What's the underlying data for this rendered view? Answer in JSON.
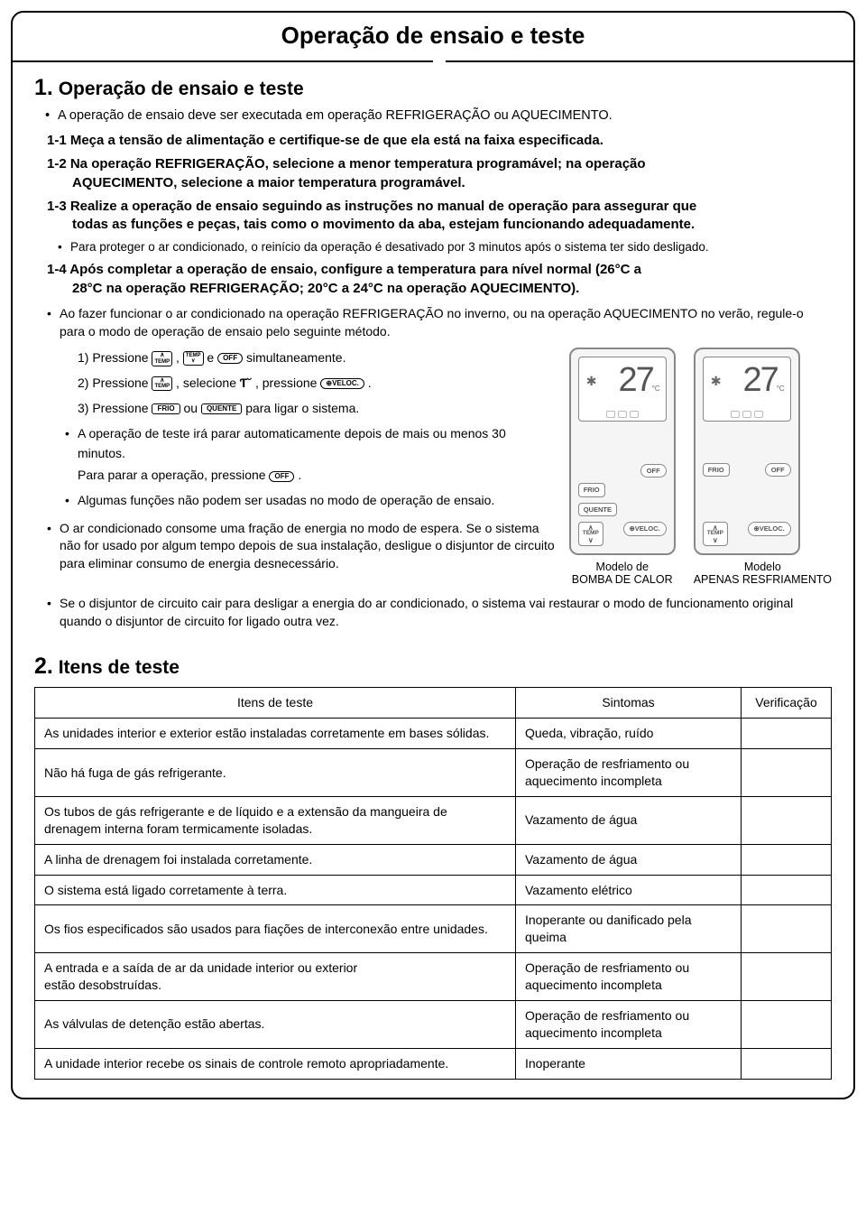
{
  "title": "Operação de ensaio e teste",
  "section1": {
    "heading_num": "1.",
    "heading": "Operação de ensaio e teste",
    "intro_bullet": "A operação de ensaio deve ser executada em operação REFRIGERAÇÃO ou AQUECIMENTO.",
    "s1_1": "1-1 Meça a tensão de alimentação e certifique-se de que ela está na faixa especificada.",
    "s1_2a": "1-2 Na operação REFRIGERAÇÃO, selecione a menor temperatura programável; na operação",
    "s1_2b": "AQUECIMENTO, selecione a maior temperatura programável.",
    "s1_3a": "1-3 Realize a operação de ensaio seguindo as instruções no manual de operação para assegurar que",
    "s1_3b": "todas as funções e peças, tais como o movimento da aba, estejam funcionando adequadamente.",
    "s1_3_bullet": "Para proteger o ar condicionado, o reinício da operação é desativado por 3 minutos após o sistema ter sido desligado.",
    "s1_4a": "1-4 Após completar a operação de ensaio, configure a temperatura para nível normal (26°C a",
    "s1_4b": "28°C na operação REFRIGERAÇÃO; 20°C a 24°C na operação AQUECIMENTO).",
    "note1": "Ao fazer funcionar o ar condicionado na operação REFRIGERAÇÃO no inverno, ou na operação AQUECIMENTO no verão, regule-o para o modo de operação de ensaio pelo seguinte método.",
    "step1_a": "1)  Pressione ",
    "step1_b": " , ",
    "step1_c": " e ",
    "step1_d": " simultaneamente.",
    "step2_a": "2)  Pressione ",
    "step2_b": " , selecione ",
    "step2_c": " , pressione ",
    "step2_d": " .",
    "step3_a": "3)  Pressione ",
    "step3_b": " ou ",
    "step3_c": " para ligar o sistema.",
    "step_b1": "A operação de teste irá parar automaticamente depois de mais ou menos 30 minutos.",
    "step_stop_a": "Para parar a operação, pressione ",
    "step_stop_b": " .",
    "step_b2": "Algumas funções não podem ser usadas no modo de operação de ensaio.",
    "standby": "O ar condicionado consome uma fração de energia no modo de espera. Se o sistema não for usado por algum tempo depois de sua instalação, desligue o disjuntor de circuito para eliminar consumo de energia desnecessário.",
    "breaker": "Se o disjuntor de circuito cair para desligar a energia do ar condicionado, o sistema vai restaurar o modo de funcionamento original quando o disjuntor de circuito for ligado outra vez.",
    "buttons": {
      "temp": "TEMP",
      "temp_up": "TEMP",
      "off": "OFF",
      "veloc": "VELOC.",
      "frio": "FRIO",
      "quente": "QUENTE",
      "mode_symbol": "⟳"
    },
    "remote1": {
      "display": "27",
      "caption1": "Modelo de",
      "caption2": "BOMBA DE CALOR"
    },
    "remote2": {
      "display": "27",
      "caption1": "Modelo",
      "caption2": "APENAS RESFRIAMENTO"
    },
    "rlabels": {
      "off": "OFF",
      "frio": "FRIO",
      "quente": "QUENTE",
      "temp": "TEMP",
      "veloc": "VELOC."
    }
  },
  "section2": {
    "heading_num": "2.",
    "heading": "Itens de teste",
    "columns": [
      "Itens de teste",
      "Sintomas",
      "Verificação"
    ],
    "rows": [
      [
        "As unidades interior e exterior estão instaladas corretamente em bases sólidas.",
        "Queda, vibração, ruído",
        ""
      ],
      [
        "Não há fuga de gás refrigerante.",
        "Operação de resfriamento ou aquecimento incompleta",
        ""
      ],
      [
        "Os tubos de gás refrigerante e de líquido e a extensão da mangueira de drenagem interna foram termicamente isoladas.",
        "Vazamento de água",
        ""
      ],
      [
        "A linha de drenagem foi instalada corretamente.",
        "Vazamento de água",
        ""
      ],
      [
        "O sistema está ligado corretamente à terra.",
        "Vazamento elétrico",
        ""
      ],
      [
        "Os fios especificados são usados para fiações de interconexão entre unidades.",
        "Inoperante ou danificado pela queima",
        ""
      ],
      [
        "A entrada e a saída de ar da unidade interior ou exterior\nestão desobstruídas.",
        "Operação de resfriamento ou aquecimento incompleta",
        ""
      ],
      [
        "As válvulas de detenção estão abertas.",
        "Operação de resfriamento ou aquecimento incompleta",
        ""
      ],
      [
        "A unidade interior recebe os sinais de controle remoto apropriadamente.",
        "Inoperante",
        ""
      ]
    ]
  },
  "colors": {
    "border": "#000000",
    "text": "#000000",
    "remote_border": "#888888",
    "remote_bg": "#f5f5f5"
  }
}
